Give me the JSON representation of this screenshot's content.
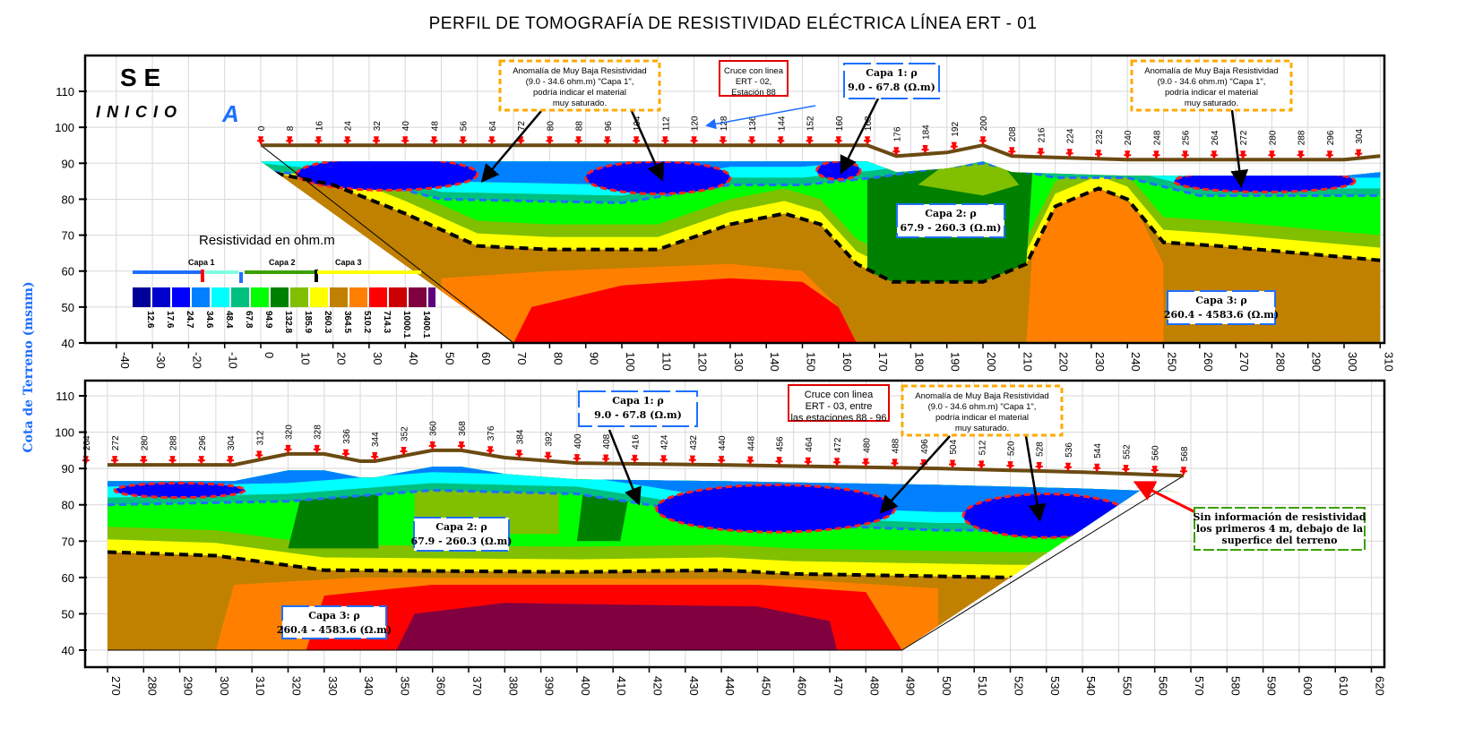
{
  "title": "PERFIL DE TOMOGRAFÍA DE RESISTIVIDAD ELÉCTRICA LÍNEA  ERT - 01",
  "y_axis_title": "Cota de Terreno  (msnm)",
  "labels": {
    "direction": "S E",
    "start": "I N I C I O",
    "point": "A"
  },
  "legend": {
    "title": "Resistividad en ohm.m",
    "layers": [
      "Capa 1",
      "Capa 2",
      "Capa 3"
    ],
    "colors": [
      "#000099",
      "#0000cc",
      "#0000ff",
      "#0080ff",
      "#00ffff",
      "#00c080",
      "#00ff00",
      "#008000",
      "#80c000",
      "#ffff00",
      "#c08000",
      "#ff8000",
      "#ff0000",
      "#cc0000",
      "#800040",
      "#600080"
    ],
    "values": [
      "12.6",
      "17.6",
      "24.7",
      "34.6",
      "48.4",
      "67.8",
      "94.9",
      "132.8",
      "185.9",
      "260.3",
      "364.5",
      "510.2",
      "714.3",
      "1000.1",
      "1400.1"
    ]
  },
  "annotations": {
    "anomaly": [
      "Anomalía de Muy Baja Resistividad",
      "(9.0 - 34.6 ohm.m) \"Capa 1\",",
      "podría indicar el material",
      "muy saturado."
    ],
    "cross1": [
      "Cruce con linea",
      "ERT - 02,",
      "Estación 88"
    ],
    "cross2": [
      "Cruce con linea",
      "ERT - 03, entre",
      "las estaciones 88 - 96"
    ],
    "capa1": [
      "Capa 1: ρ",
      "9.0 - 67.8 (Ω.m)"
    ],
    "capa2": [
      "Capa 2: ρ",
      "67.9 - 260.3 (Ω.m)"
    ],
    "capa3": [
      "Capa 3: ρ",
      "260.4 - 4583.6 (Ω.m)"
    ],
    "noinfo": [
      "Sin información de resistividad",
      "los primeros 4 m, debajo de la",
      "superfice del terreno"
    ]
  },
  "chart_data": [
    {
      "type": "heatmap",
      "name": "upper-section",
      "xlim": [
        -40,
        310
      ],
      "ylim": [
        40,
        115
      ],
      "x_ticks": [
        -40,
        -30,
        -20,
        -10,
        0,
        10,
        20,
        30,
        40,
        50,
        60,
        70,
        80,
        90,
        100,
        110,
        120,
        130,
        140,
        150,
        160,
        170,
        180,
        190,
        200,
        210,
        220,
        230,
        240,
        250,
        260,
        270,
        280,
        290,
        300,
        310
      ],
      "y_ticks": [
        40,
        50,
        60,
        70,
        80,
        90,
        100,
        110
      ],
      "stations": [
        0,
        8,
        16,
        24,
        32,
        40,
        48,
        56,
        64,
        72,
        80,
        88,
        96,
        104,
        112,
        120,
        128,
        136,
        144,
        152,
        160,
        168,
        176,
        184,
        192,
        200,
        208,
        216,
        224,
        232,
        240,
        248,
        256,
        264,
        272,
        280,
        288,
        296,
        304
      ],
      "terrain": [
        [
          0,
          95
        ],
        [
          40,
          95
        ],
        [
          80,
          95
        ],
        [
          120,
          95
        ],
        [
          168,
          95
        ],
        [
          176,
          92
        ],
        [
          190,
          93
        ],
        [
          200,
          95
        ],
        [
          208,
          92
        ],
        [
          240,
          91
        ],
        [
          280,
          91
        ],
        [
          300,
          91
        ],
        [
          310,
          92
        ]
      ],
      "capa1_boundary": [
        [
          0,
          88
        ],
        [
          30,
          85
        ],
        [
          50,
          80
        ],
        [
          100,
          79
        ],
        [
          130,
          84
        ],
        [
          150,
          84
        ],
        [
          170,
          86
        ],
        [
          190,
          89
        ],
        [
          200,
          90
        ],
        [
          210,
          88
        ],
        [
          220,
          86
        ],
        [
          240,
          86
        ],
        [
          260,
          81
        ],
        [
          310,
          81
        ]
      ],
      "capa3_boundary": [
        [
          0,
          88
        ],
        [
          20,
          84
        ],
        [
          40,
          76
        ],
        [
          60,
          67
        ],
        [
          80,
          66
        ],
        [
          110,
          66
        ],
        [
          130,
          73
        ],
        [
          145,
          76
        ],
        [
          155,
          73
        ],
        [
          165,
          62
        ],
        [
          175,
          57
        ],
        [
          200,
          57
        ],
        [
          212,
          62
        ],
        [
          220,
          78
        ],
        [
          232,
          83
        ],
        [
          240,
          80
        ],
        [
          250,
          68
        ],
        [
          265,
          67
        ],
        [
          310,
          63
        ]
      ]
    },
    {
      "type": "heatmap",
      "name": "lower-section",
      "xlim": [
        265,
        622
      ],
      "ylim": [
        37,
        115
      ],
      "x_ticks": [
        270,
        280,
        290,
        300,
        310,
        320,
        330,
        340,
        350,
        360,
        370,
        380,
        390,
        400,
        410,
        420,
        430,
        440,
        450,
        460,
        470,
        480,
        490,
        500,
        510,
        520,
        530,
        540,
        550,
        560,
        570,
        580,
        590,
        600,
        610,
        620
      ],
      "y_ticks": [
        40,
        50,
        60,
        70,
        80,
        90,
        100,
        110
      ],
      "stations": [
        264,
        272,
        280,
        288,
        296,
        304,
        312,
        320,
        328,
        336,
        344,
        352,
        360,
        368,
        376,
        384,
        392,
        400,
        408,
        416,
        424,
        432,
        440,
        448,
        456,
        464,
        472,
        480,
        488,
        496,
        504,
        512,
        520,
        528,
        536,
        544,
        552,
        560,
        568
      ],
      "terrain": [
        [
          270,
          91
        ],
        [
          305,
          91
        ],
        [
          320,
          94
        ],
        [
          330,
          94
        ],
        [
          340,
          92
        ],
        [
          344,
          92
        ],
        [
          360,
          95
        ],
        [
          368,
          95
        ],
        [
          380,
          93
        ],
        [
          400,
          91.5
        ],
        [
          440,
          91
        ],
        [
          500,
          90
        ],
        [
          540,
          89
        ],
        [
          568,
          88
        ]
      ],
      "capa1_boundary": [
        [
          270,
          80
        ],
        [
          320,
          81
        ],
        [
          360,
          84
        ],
        [
          400,
          83
        ],
        [
          420,
          80
        ],
        [
          450,
          75
        ],
        [
          500,
          73
        ],
        [
          560,
          73
        ]
      ],
      "capa3_boundary": [
        [
          270,
          67
        ],
        [
          300,
          66
        ],
        [
          330,
          62
        ],
        [
          400,
          61.5
        ],
        [
          440,
          62
        ],
        [
          460,
          61
        ],
        [
          520,
          60
        ],
        [
          560,
          60
        ]
      ]
    }
  ]
}
